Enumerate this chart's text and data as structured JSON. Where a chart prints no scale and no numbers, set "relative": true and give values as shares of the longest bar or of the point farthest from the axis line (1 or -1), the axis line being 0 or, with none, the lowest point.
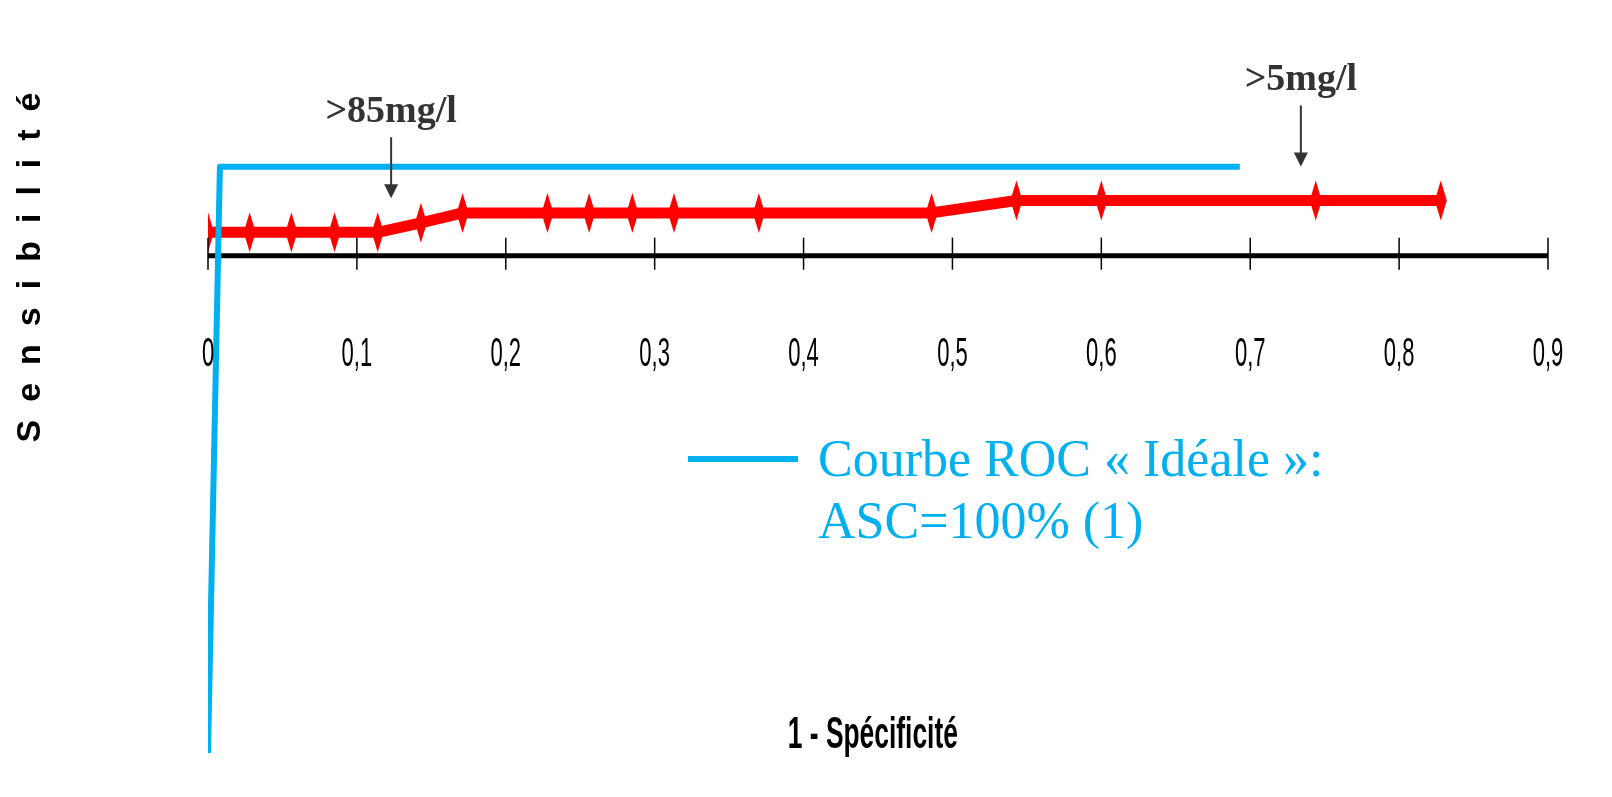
{
  "chart_data": {
    "type": "line",
    "relative": true,
    "xlabel": "1 - Spécificité",
    "ylabel": "Sensibilité",
    "xlim": [
      0,
      0.9
    ],
    "xticks": [
      {
        "value": 0,
        "label": "0"
      },
      {
        "value": 0.1,
        "label": "0,1"
      },
      {
        "value": 0.2,
        "label": "0,2"
      },
      {
        "value": 0.3,
        "label": "0,3"
      },
      {
        "value": 0.4,
        "label": "0,4"
      },
      {
        "value": 0.5,
        "label": "0,5"
      },
      {
        "value": 0.6,
        "label": "0,6"
      },
      {
        "value": 0.7,
        "label": "0,7"
      },
      {
        "value": 0.8,
        "label": "0,8"
      },
      {
        "value": 0.9,
        "label": "0,9"
      }
    ],
    "series": [
      {
        "color": "#ff0000",
        "marker": "diamond",
        "x": [
          0,
          0.028,
          0.056,
          0.085,
          0.114,
          0.143,
          0.171,
          0.228,
          0.256,
          0.285,
          0.313,
          0.37,
          0.486,
          0.543,
          0.6,
          0.744,
          0.828
        ],
        "values": [
          0.047,
          0.047,
          0.047,
          0.047,
          0.047,
          0.066,
          0.086,
          0.086,
          0.086,
          0.086,
          0.086,
          0.086,
          0.086,
          0.111,
          0.111,
          0.111,
          0.111
        ]
      },
      {
        "name": "Courbe ROC « Idéale »: ASC=100% (1)",
        "color": "#00b0f0",
        "marker": "none",
        "x": [
          0,
          0.008,
          0.693
        ],
        "values": [
          -1,
          0.179,
          0.179
        ]
      }
    ],
    "annotations": [
      {
        "text": ">85mg/l",
        "x": 0.123,
        "y": 0.047
      },
      {
        "text": ">5mg/l",
        "x": 0.734,
        "y": 0.111
      }
    ],
    "legend": "right"
  }
}
